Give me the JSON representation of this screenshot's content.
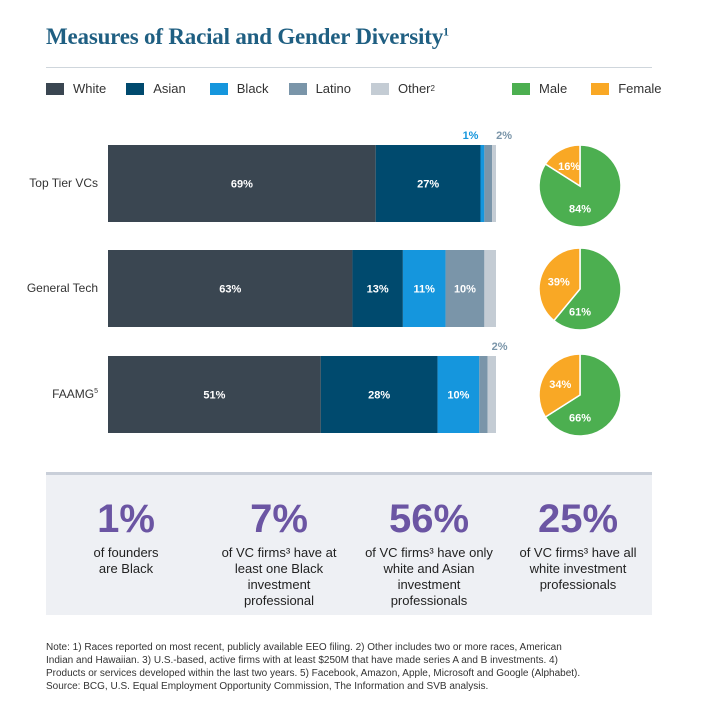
{
  "header": {
    "title": "Measures of Racial and Gender Diversity",
    "title_sup": "1"
  },
  "legend": {
    "race": [
      {
        "name": "White",
        "color": "#3a4651"
      },
      {
        "name": "Asian",
        "color": "#004a6e"
      },
      {
        "name": "Black",
        "color": "#1596dd"
      },
      {
        "name": "Latino",
        "color": "#7a95a9"
      },
      {
        "name": "Other",
        "sup": "2",
        "color": "#c4ccd4"
      }
    ],
    "gender": [
      {
        "name": "Male",
        "color": "#4caf50"
      },
      {
        "name": "Female",
        "color": "#f9a825"
      }
    ]
  },
  "chart_data": [
    {
      "type": "bar",
      "orientation": "horizontal",
      "stacked": true,
      "categories": [
        "Top Tier VCs",
        "General Tech",
        "FAAMG"
      ],
      "category_sups": [
        "",
        "",
        "5"
      ],
      "series": [
        {
          "name": "White",
          "values": [
            69,
            63,
            51
          ]
        },
        {
          "name": "Asian",
          "values": [
            27,
            13,
            28
          ]
        },
        {
          "name": "Black",
          "values": [
            1,
            11,
            10
          ]
        },
        {
          "name": "Latino",
          "values": [
            2,
            10,
            2
          ]
        },
        {
          "name": "Other",
          "values": [
            1,
            3,
            2
          ]
        }
      ],
      "data_labels": [
        [
          "69%",
          "27%",
          "1%",
          "2%",
          ""
        ],
        [
          "63%",
          "13%",
          "11%",
          "10%",
          ""
        ],
        [
          "51%",
          "28%",
          "10%",
          "2%",
          ""
        ]
      ],
      "xlim": [
        0,
        100
      ]
    },
    {
      "type": "pie",
      "categories": [
        "Top Tier VCs",
        "General Tech",
        "FAAMG"
      ],
      "series": [
        {
          "name": "Male",
          "values": [
            84,
            61,
            66
          ]
        },
        {
          "name": "Female",
          "values": [
            16,
            39,
            34
          ]
        }
      ],
      "data_labels": [
        [
          "84%",
          "16%"
        ],
        [
          "61%",
          "39%"
        ],
        [
          "66%",
          "34%"
        ]
      ]
    }
  ],
  "stats": [
    {
      "value": "1%",
      "lines": [
        "of founders",
        "are Black"
      ]
    },
    {
      "value": "7%",
      "lines": [
        "of VC firms³ have at",
        "least one Black",
        "investment",
        "professional"
      ]
    },
    {
      "value": "56%",
      "lines": [
        "of VC firms³ have only",
        "white and Asian",
        "investment",
        "professionals"
      ]
    },
    {
      "value": "25%",
      "lines": [
        "of VC firms³ have all",
        "white investment",
        "professionals"
      ]
    }
  ],
  "notes": [
    "Note: 1) Races reported on most recent, publicly available EEO filing. 2) Other includes two or more races, American",
    "Indian and Hawaiian. 3) U.S.-based, active firms with at least $250M that have made series A and B investments. 4)",
    "Products or services developed within the last two years. 5) Facebook, Amazon, Apple, Microsoft and Google (Alphabet).",
    "Source: BCG, U.S. Equal Employment Opportunity Commission, The Information and SVB analysis."
  ]
}
